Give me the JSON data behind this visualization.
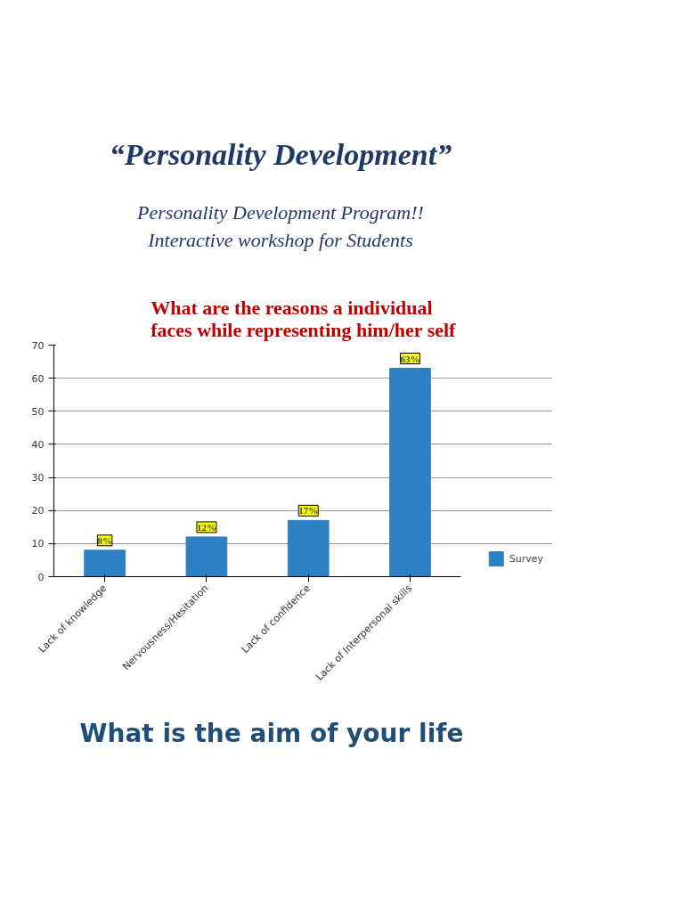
{
  "chart_data": {
    "type": "bar",
    "title": "What are the reasons a individual faces while representing him/her self",
    "annotations": [
      "“Personality Development”",
      "Personality Development Program!!",
      "Interactive workshop for Students",
      "What is the aim of your life"
    ],
    "categories": [
      "Lack of knowledge",
      "Nervousness/Hesitation",
      "Lack of confidence",
      "Lack of Interpersonal skills"
    ],
    "series": [
      {
        "name": "Survey",
        "color": "#2e80c4",
        "values": [
          8,
          12,
          17,
          63
        ],
        "value_labels": [
          "8%",
          "12%",
          "17%",
          "63%"
        ]
      }
    ],
    "ylim": [
      0,
      70
    ],
    "yticks": [
      0,
      10,
      20,
      30,
      40,
      50,
      60,
      70
    ],
    "grid": "y",
    "legend": "right"
  }
}
